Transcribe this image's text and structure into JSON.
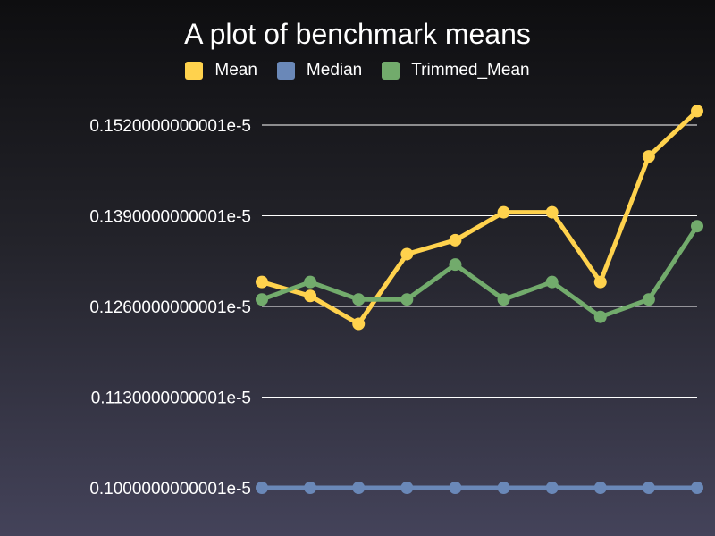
{
  "chart_data": {
    "type": "line",
    "title": "A plot of benchmark means",
    "xlabel": "",
    "ylabel": "",
    "x": [
      1,
      2,
      3,
      4,
      5,
      6,
      7,
      8,
      9,
      10
    ],
    "ylim": [
      1.000000000001e-06,
      1.520000000001e-06
    ],
    "yticks": [
      1.000000000001e-06,
      1.130000000001e-06,
      1.260000000001e-06,
      1.390000000001e-06,
      1.520000000001e-06
    ],
    "ytick_labels": [
      "0.1000000000001e-5",
      "0.1130000000001e-5",
      "0.1260000000001e-5",
      "0.1390000000001e-5",
      "0.1520000000001e-5"
    ],
    "grid": true,
    "legend_position": "top-center",
    "series": [
      {
        "name": "Mean",
        "color": "#ffd24d",
        "values": [
          1.295e-06,
          1.275e-06,
          1.235e-06,
          1.335e-06,
          1.355e-06,
          1.395e-06,
          1.395e-06,
          1.295e-06,
          1.475e-06,
          1.54e-06
        ]
      },
      {
        "name": "Median",
        "color": "#6a88b8",
        "values": [
          1e-06,
          1e-06,
          1e-06,
          1e-06,
          1e-06,
          1e-06,
          1e-06,
          1e-06,
          1e-06,
          1e-06
        ]
      },
      {
        "name": "Trimmed_Mean",
        "color": "#72ab6c",
        "values": [
          1.27e-06,
          1.295e-06,
          1.27e-06,
          1.27e-06,
          1.32e-06,
          1.27e-06,
          1.295e-06,
          1.245e-06,
          1.27e-06,
          1.375e-06
        ]
      }
    ]
  }
}
